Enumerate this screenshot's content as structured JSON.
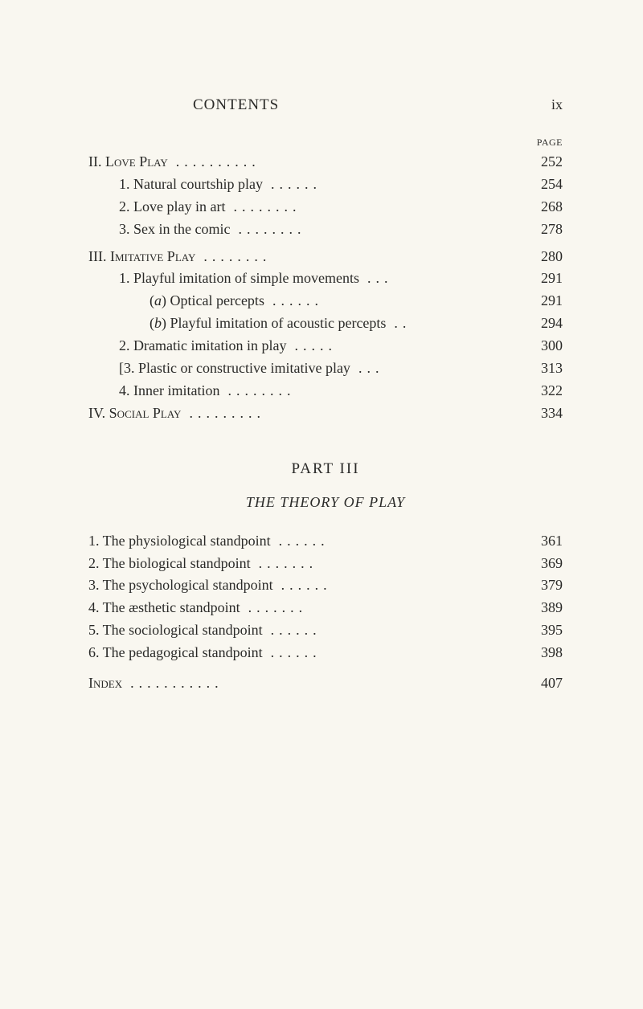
{
  "header": {
    "title": "CONTENTS",
    "roman": "ix"
  },
  "page_label": "PAGE",
  "section1": [
    {
      "text": "II. Love Play",
      "page": "252",
      "indent": 0,
      "sc": true
    },
    {
      "text": "1. Natural courtship play",
      "page": "254",
      "indent": 1
    },
    {
      "text": "2. Love play in art",
      "page": "268",
      "indent": 1
    },
    {
      "text": "3. Sex in the comic",
      "page": "278",
      "indent": 1
    }
  ],
  "section2": [
    {
      "text": "III. Imitative Play",
      "page": "280",
      "indent": 0,
      "sc": true
    },
    {
      "text": "1. Playful imitation of simple movements",
      "page": "291",
      "indent": 1
    },
    {
      "text": "(a) Optical percepts",
      "page": "291",
      "indent": 2,
      "italic_paren": true
    },
    {
      "text": "(b) Playful imitation of acoustic percepts",
      "page": "294",
      "indent": 2,
      "italic_paren": true
    },
    {
      "text": "2. Dramatic imitation in play",
      "page": "300",
      "indent": 1
    },
    {
      "text": "[3. Plastic or constructive imitative play",
      "page": "313",
      "indent": 1
    },
    {
      "text": "4. Inner imitation",
      "page": "322",
      "indent": 1
    },
    {
      "text": "IV. Social Play",
      "page": "334",
      "indent": 0,
      "sc": true
    }
  ],
  "part": {
    "title": "PART III",
    "subtitle": "THE THEORY OF PLAY"
  },
  "section3": [
    {
      "text": "1. The physiological standpoint",
      "page": "361",
      "indent": 0
    },
    {
      "text": "2. The biological standpoint",
      "page": "369",
      "indent": 0
    },
    {
      "text": "3. The psychological standpoint",
      "page": "379",
      "indent": 0
    },
    {
      "text": "4. The æsthetic standpoint",
      "page": "389",
      "indent": 0
    },
    {
      "text": "5. The sociological standpoint",
      "page": "395",
      "indent": 0
    },
    {
      "text": "6. The pedagogical standpoint",
      "page": "398",
      "indent": 0
    }
  ],
  "index": {
    "text": "Index",
    "page": "407",
    "indent": 0,
    "sc": true
  },
  "style": {
    "text_color": "#2a2a28",
    "background_color": "#f9f7f0",
    "font_family": "Times New Roman",
    "body_fontsize": 18,
    "header_fontsize": 19
  }
}
